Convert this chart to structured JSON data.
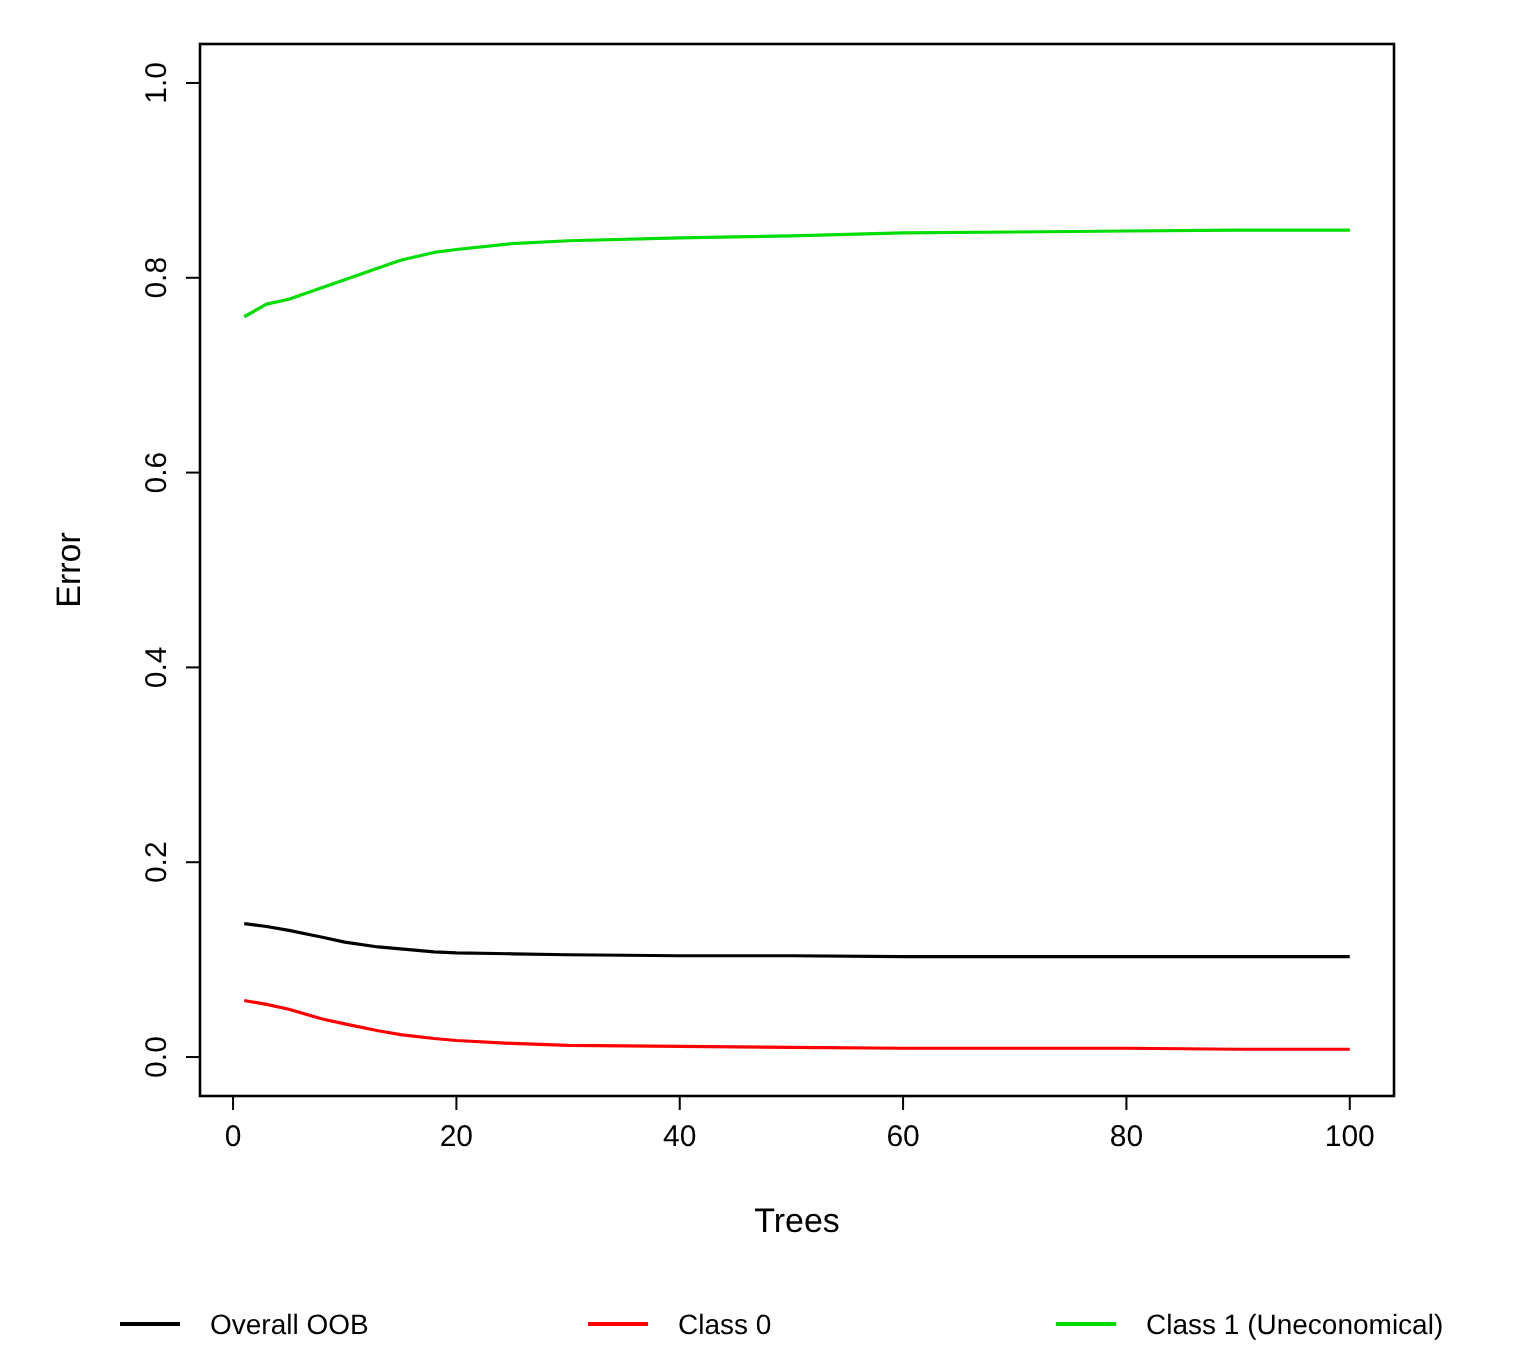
{
  "chart_data": {
    "type": "line",
    "xlabel": "Trees",
    "ylabel": "Error",
    "x": [
      1,
      3,
      5,
      8,
      10,
      13,
      15,
      18,
      20,
      25,
      30,
      40,
      50,
      60,
      70,
      80,
      90,
      100
    ],
    "series": [
      {
        "name": "Overall OOB",
        "color": "#000000",
        "values": [
          0.137,
          0.134,
          0.13,
          0.123,
          0.118,
          0.113,
          0.111,
          0.108,
          0.107,
          0.106,
          0.105,
          0.104,
          0.104,
          0.103,
          0.103,
          0.103,
          0.103,
          0.103
        ]
      },
      {
        "name": "Class 0",
        "color": "#ff0000",
        "values": [
          0.058,
          0.054,
          0.049,
          0.039,
          0.034,
          0.027,
          0.023,
          0.019,
          0.017,
          0.014,
          0.012,
          0.011,
          0.01,
          0.009,
          0.009,
          0.009,
          0.008,
          0.008
        ]
      },
      {
        "name": "Class 1 (Uneconomical)",
        "color": "#00dd00",
        "values": [
          0.76,
          0.773,
          0.778,
          0.79,
          0.798,
          0.81,
          0.818,
          0.826,
          0.829,
          0.835,
          0.838,
          0.841,
          0.843,
          0.846,
          0.847,
          0.848,
          0.849,
          0.849
        ]
      }
    ],
    "xlim": [
      -2.96,
      103.96
    ],
    "ylim": [
      -0.04,
      1.04
    ],
    "xticks": [
      0,
      20,
      40,
      60,
      80,
      100
    ],
    "yticks": [
      {
        "value": 0,
        "label": "0.0"
      },
      {
        "value": 0.2,
        "label": "0.2"
      },
      {
        "value": 0.4,
        "label": "0.4"
      },
      {
        "value": 0.6,
        "label": "0.6"
      },
      {
        "value": 0.8,
        "label": "0.8"
      },
      {
        "value": 1,
        "label": "1.0"
      }
    ],
    "grid": false,
    "legend": "bottom",
    "marker": "none",
    "line_style": "solid"
  }
}
